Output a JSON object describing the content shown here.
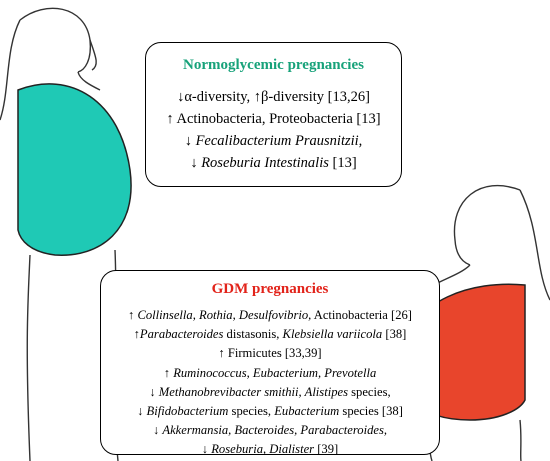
{
  "boxes": [
    {
      "title": "Normoglycemic pregnancies",
      "lines": [
        [
          {
            "text": "↓α-diversity, ↑β-diversity [13,26]"
          }
        ],
        [
          {
            "text": "↑ Actinobacteria, Proteobacteria [13]"
          }
        ],
        [
          {
            "text": "↓ "
          },
          {
            "text": "Fecalibacterium Prausnitzii,",
            "italic": true
          }
        ],
        [
          {
            "text": "↓ "
          },
          {
            "text": "Roseburia Intestinalis",
            "italic": true
          },
          {
            "text": " [13]"
          }
        ]
      ]
    },
    {
      "title": "GDM pregnancies",
      "lines": [
        [
          {
            "text": "↑ "
          },
          {
            "text": "Collinsella, Rothia, Desulfovibrio,",
            "italic": true
          },
          {
            "text": " Actinobacteria [26]"
          }
        ],
        [
          {
            "text": "↑"
          },
          {
            "text": "Parabacteroides",
            "italic": true
          },
          {
            "text": " distasonis, "
          },
          {
            "text": "Klebsiella variicola",
            "italic": true
          },
          {
            "text": " [38]"
          }
        ],
        [
          {
            "text": "↑ Firmicutes [33,39]"
          }
        ],
        [
          {
            "text": "↑ "
          },
          {
            "text": "Ruminococcus, Eubacterium, Prevotella",
            "italic": true
          }
        ],
        [
          {
            "text": "↓ "
          },
          {
            "text": "Methanobrevibacter smithii, Alistipes",
            "italic": true
          },
          {
            "text": " species,"
          }
        ],
        [
          {
            "text": "↓ "
          },
          {
            "text": "Bifidobacterium",
            "italic": true
          },
          {
            "text": " species, "
          },
          {
            "text": "Eubacterium",
            "italic": true
          },
          {
            "text": " species [38]"
          }
        ],
        [
          {
            "text": "↓ "
          },
          {
            "text": "Akkermansia, Bacteroides, Parabacteroides,",
            "italic": true
          }
        ],
        [
          {
            "text": "↓ "
          },
          {
            "text": "Roseburia, Dialister",
            "italic": true
          },
          {
            "text": " [39]"
          }
        ]
      ]
    }
  ]
}
